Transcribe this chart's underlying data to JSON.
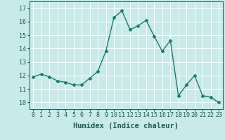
{
  "x": [
    0,
    1,
    2,
    3,
    4,
    5,
    6,
    7,
    8,
    9,
    10,
    11,
    12,
    13,
    14,
    15,
    16,
    17,
    18,
    19,
    20,
    21,
    22,
    23
  ],
  "y": [
    11.9,
    12.1,
    11.9,
    11.6,
    11.5,
    11.3,
    11.3,
    11.8,
    12.3,
    13.8,
    16.3,
    16.8,
    15.4,
    15.7,
    16.1,
    14.9,
    13.8,
    14.6,
    10.5,
    11.3,
    12.0,
    10.5,
    10.4,
    10.0
  ],
  "xlabel": "Humidex (Indice chaleur)",
  "xlim": [
    -0.5,
    23.5
  ],
  "ylim": [
    9.5,
    17.5
  ],
  "yticks": [
    10,
    11,
    12,
    13,
    14,
    15,
    16,
    17
  ],
  "xticks": [
    0,
    1,
    2,
    3,
    4,
    5,
    6,
    7,
    8,
    9,
    10,
    11,
    12,
    13,
    14,
    15,
    16,
    17,
    18,
    19,
    20,
    21,
    22,
    23
  ],
  "line_color": "#1a7a6e",
  "marker": "D",
  "marker_size": 2.0,
  "bg_color": "#c8eae8",
  "grid_color": "#ffffff",
  "tick_label_color": "#1a5c55",
  "axis_color": "#1a5c55",
  "xlabel_fontsize": 7.5,
  "tick_fontsize": 6.0,
  "line_width": 1.0
}
